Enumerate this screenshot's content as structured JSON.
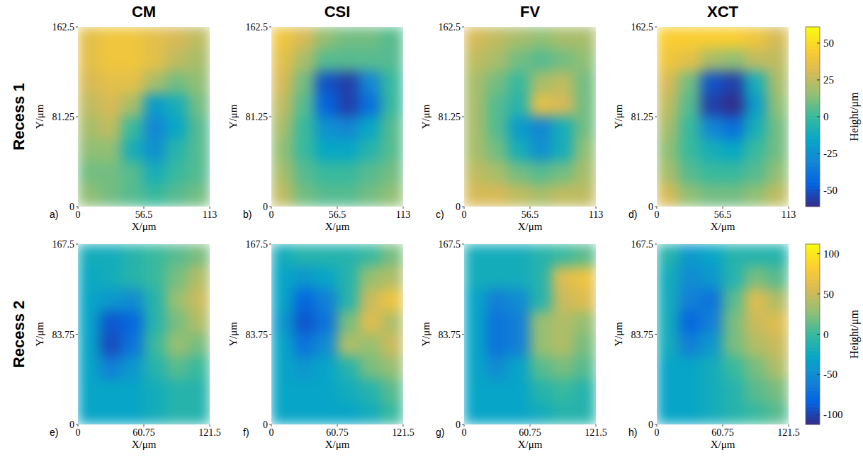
{
  "figure": {
    "column_titles": [
      "CM",
      "CSI",
      "FV",
      "XCT"
    ],
    "row_titles": [
      "Recess 1",
      "Recess 2"
    ]
  },
  "chart_data": [
    {
      "type": "heatmap",
      "label": "a)",
      "xlabel": "X/μm",
      "ylabel": "Y/μm",
      "xlim": [
        0,
        113
      ],
      "xticks": [
        0,
        56.5,
        113
      ],
      "ylim": [
        0,
        162.5
      ],
      "yticks": [
        0,
        81.25,
        162.5
      ],
      "color_range": [
        -61,
        61
      ],
      "cells": [
        [
          35,
          40,
          40,
          35,
          30,
          25
        ],
        [
          35,
          40,
          40,
          35,
          25,
          20
        ],
        [
          30,
          35,
          35,
          20,
          10,
          15
        ],
        [
          25,
          30,
          20,
          -20,
          -10,
          10
        ],
        [
          20,
          25,
          0,
          -30,
          -15,
          5
        ],
        [
          15,
          15,
          -10,
          -25,
          -5,
          5
        ],
        [
          10,
          10,
          5,
          -10,
          0,
          5
        ],
        [
          15,
          10,
          5,
          0,
          5,
          10
        ]
      ]
    },
    {
      "type": "heatmap",
      "label": "b)",
      "xlabel": "X/μm",
      "ylabel": "Y/μm",
      "xlim": [
        0,
        113
      ],
      "xticks": [
        0,
        56.5,
        113
      ],
      "ylim": [
        0,
        162.5
      ],
      "yticks": [
        0,
        81.25,
        162.5
      ],
      "color_range": [
        -61,
        61
      ],
      "cells": [
        [
          40,
          30,
          15,
          10,
          10,
          5
        ],
        [
          35,
          20,
          5,
          5,
          5,
          5
        ],
        [
          30,
          10,
          -50,
          -55,
          -30,
          0
        ],
        [
          25,
          5,
          -45,
          -55,
          -40,
          0
        ],
        [
          20,
          0,
          -25,
          -30,
          -15,
          5
        ],
        [
          15,
          0,
          -15,
          -15,
          -5,
          5
        ],
        [
          20,
          5,
          0,
          0,
          5,
          10
        ],
        [
          25,
          10,
          5,
          5,
          10,
          15
        ]
      ]
    },
    {
      "type": "heatmap",
      "label": "c)",
      "xlabel": "X/μm",
      "ylabel": "Y/μm",
      "xlim": [
        0,
        113
      ],
      "xticks": [
        0,
        56.5,
        113
      ],
      "ylim": [
        0,
        162.5
      ],
      "yticks": [
        0,
        81.25,
        162.5
      ],
      "color_range": [
        -61,
        61
      ],
      "cells": [
        [
          30,
          25,
          20,
          15,
          20,
          20
        ],
        [
          25,
          20,
          10,
          5,
          10,
          15
        ],
        [
          20,
          10,
          0,
          20,
          25,
          10
        ],
        [
          20,
          5,
          -5,
          35,
          30,
          10
        ],
        [
          20,
          5,
          -20,
          -30,
          -10,
          10
        ],
        [
          20,
          10,
          -10,
          -25,
          -10,
          15
        ],
        [
          25,
          20,
          10,
          5,
          10,
          20
        ],
        [
          30,
          30,
          25,
          20,
          25,
          25
        ]
      ]
    },
    {
      "type": "heatmap",
      "label": "d)",
      "xlabel": "X/μm",
      "ylabel": "Y/μm",
      "xlim": [
        0,
        113
      ],
      "xticks": [
        0,
        56.5,
        113
      ],
      "ylim": [
        0,
        162.5
      ],
      "yticks": [
        0,
        81.25,
        162.5
      ],
      "color_range": [
        -61,
        61
      ],
      "colorbar": {
        "label": "Height/μm",
        "ticks": [
          50,
          25,
          0,
          -25,
          -50
        ]
      },
      "cells": [
        [
          45,
          45,
          45,
          45,
          40,
          30
        ],
        [
          40,
          35,
          20,
          15,
          25,
          25
        ],
        [
          30,
          10,
          -50,
          -55,
          -10,
          20
        ],
        [
          25,
          5,
          -55,
          -60,
          -20,
          15
        ],
        [
          20,
          0,
          -30,
          -40,
          -10,
          10
        ],
        [
          15,
          0,
          -10,
          -15,
          0,
          10
        ],
        [
          20,
          5,
          0,
          0,
          5,
          15
        ],
        [
          30,
          15,
          10,
          10,
          15,
          25
        ]
      ]
    },
    {
      "type": "heatmap",
      "label": "e)",
      "xlabel": "X/μm",
      "ylabel": "Y/μm",
      "xlim": [
        0,
        121.5
      ],
      "xticks": [
        0,
        60.75,
        121.5
      ],
      "ylim": [
        0,
        167.5
      ],
      "yticks": [
        0,
        83.75,
        167.5
      ],
      "color_range": [
        -112,
        112
      ],
      "cells": [
        [
          -20,
          -20,
          -10,
          0,
          10,
          20
        ],
        [
          -25,
          -20,
          -10,
          0,
          20,
          40
        ],
        [
          -30,
          -40,
          -50,
          -10,
          30,
          50
        ],
        [
          -30,
          -90,
          -80,
          -10,
          20,
          40
        ],
        [
          -30,
          -95,
          -70,
          0,
          30,
          20
        ],
        [
          -30,
          -60,
          -40,
          -10,
          10,
          0
        ],
        [
          -30,
          -30,
          -30,
          -20,
          -10,
          -10
        ],
        [
          -30,
          -30,
          -30,
          -20,
          -10,
          -10
        ]
      ]
    },
    {
      "type": "heatmap",
      "label": "f)",
      "xlabel": "X/μm",
      "ylabel": "Y/μm",
      "xlim": [
        0,
        121.5
      ],
      "xticks": [
        0,
        60.75,
        121.5
      ],
      "ylim": [
        0,
        167.5
      ],
      "yticks": [
        0,
        83.75,
        167.5
      ],
      "color_range": [
        -112,
        112
      ],
      "cells": [
        [
          -20,
          -10,
          -10,
          -10,
          0,
          20
        ],
        [
          -30,
          -40,
          -30,
          -10,
          30,
          40
        ],
        [
          -30,
          -80,
          -60,
          -10,
          50,
          70
        ],
        [
          -40,
          -90,
          -70,
          20,
          60,
          40
        ],
        [
          -30,
          -70,
          -50,
          40,
          30,
          50
        ],
        [
          -30,
          -40,
          -30,
          -10,
          20,
          30
        ],
        [
          -30,
          -30,
          -30,
          -20,
          -10,
          10
        ],
        [
          -30,
          -30,
          -30,
          -30,
          -20,
          0
        ]
      ]
    },
    {
      "type": "heatmap",
      "label": "g)",
      "xlabel": "X/μm",
      "ylabel": "Y/μm",
      "xlim": [
        0,
        121.5
      ],
      "xticks": [
        0,
        60.75,
        121.5
      ],
      "ylim": [
        0,
        167.5
      ],
      "yticks": [
        0,
        83.75,
        167.5
      ],
      "color_range": [
        -112,
        112
      ],
      "cells": [
        [
          -20,
          -20,
          -20,
          -10,
          0,
          10
        ],
        [
          -20,
          -20,
          -20,
          -10,
          60,
          70
        ],
        [
          -30,
          -60,
          -50,
          -10,
          50,
          60
        ],
        [
          -30,
          -70,
          -60,
          30,
          40,
          30
        ],
        [
          -30,
          -70,
          -60,
          30,
          40,
          20
        ],
        [
          -30,
          -50,
          -30,
          10,
          20,
          10
        ],
        [
          -30,
          -30,
          -30,
          -10,
          0,
          -10
        ],
        [
          -30,
          -30,
          -30,
          -20,
          -10,
          -10
        ]
      ]
    },
    {
      "type": "heatmap",
      "label": "h)",
      "xlabel": "X/μm",
      "ylabel": "Y/μm",
      "xlim": [
        0,
        121.5
      ],
      "xticks": [
        0,
        60.75,
        121.5
      ],
      "ylim": [
        0,
        167.5
      ],
      "yticks": [
        0,
        83.75,
        167.5
      ],
      "color_range": [
        -112,
        112
      ],
      "colorbar": {
        "label": "Height/μm",
        "ticks": [
          100,
          50,
          0,
          -50,
          -100
        ]
      },
      "cells": [
        [
          -10,
          -40,
          -30,
          -10,
          -10,
          -10
        ],
        [
          -20,
          -50,
          -40,
          -10,
          20,
          10
        ],
        [
          -20,
          -60,
          -70,
          10,
          60,
          40
        ],
        [
          -20,
          -80,
          -60,
          20,
          50,
          60
        ],
        [
          -20,
          -60,
          -40,
          20,
          40,
          50
        ],
        [
          -30,
          -30,
          -20,
          0,
          20,
          40
        ],
        [
          -30,
          -30,
          -20,
          -10,
          10,
          20
        ],
        [
          -30,
          -30,
          -20,
          -10,
          0,
          10
        ]
      ]
    }
  ]
}
